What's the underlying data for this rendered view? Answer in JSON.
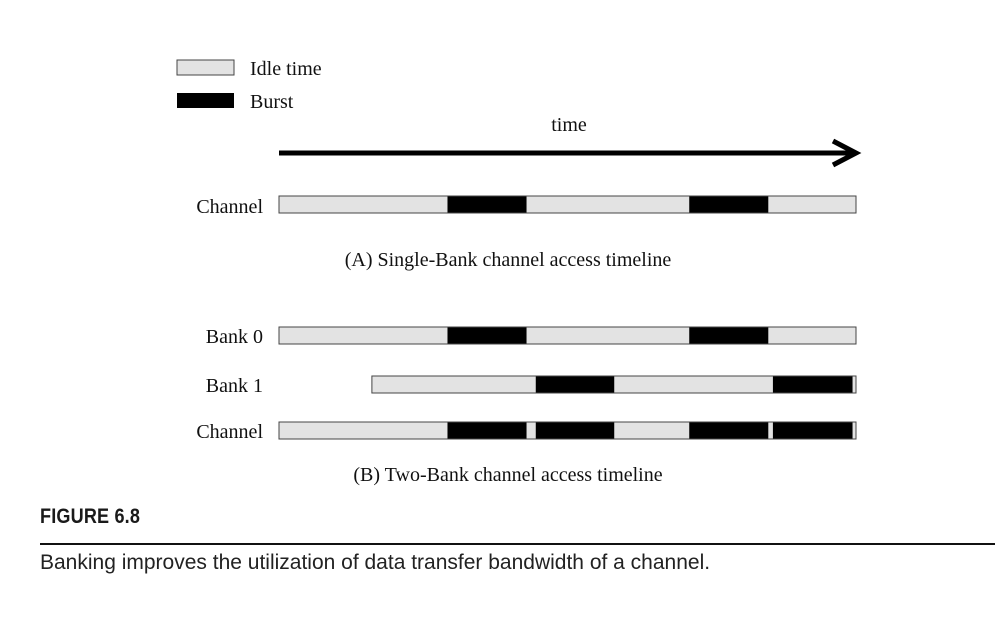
{
  "legend": {
    "idle_label": "Idle time",
    "burst_label": "Burst"
  },
  "time_axis_label": "time",
  "colors": {
    "idle": "#e3e3e3",
    "burst": "#000000",
    "outline": "#444444"
  },
  "panel_a": {
    "title": "(A) Single-Bank channel access timeline",
    "rows": [
      {
        "label": "Channel",
        "start": 0,
        "end": 100,
        "bursts": [
          [
            29.2,
            42.9
          ],
          [
            71.1,
            84.8
          ]
        ]
      }
    ]
  },
  "panel_b": {
    "title": "(B) Two-Bank channel access timeline",
    "rows": [
      {
        "label": "Bank 0",
        "start": 0,
        "end": 100,
        "bursts": [
          [
            29.2,
            42.9
          ],
          [
            71.1,
            84.8
          ]
        ]
      },
      {
        "label": "Bank 1",
        "start": 16.1,
        "end": 100,
        "bursts": [
          [
            44.5,
            58.1
          ],
          [
            85.6,
            99.4
          ]
        ]
      },
      {
        "label": "Channel",
        "start": 0,
        "end": 100,
        "bursts": [
          [
            29.2,
            42.9
          ],
          [
            44.5,
            58.1
          ],
          [
            71.1,
            84.8
          ],
          [
            85.6,
            99.4
          ]
        ]
      }
    ]
  },
  "figure": {
    "label": "FIGURE 6.8",
    "caption": "Banking improves the utilization of data transfer bandwidth of a channel."
  }
}
